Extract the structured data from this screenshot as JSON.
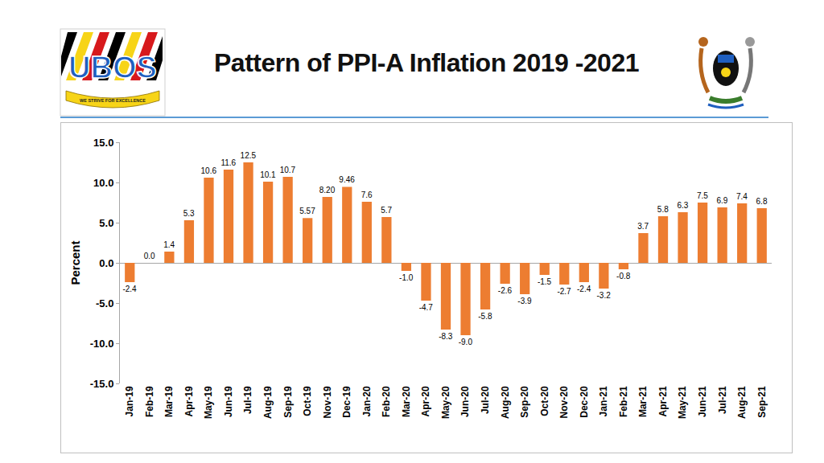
{
  "logo": {
    "text": "UBOS",
    "motto": "WE STRIVE FOR EXCELLENCE"
  },
  "chart_data": {
    "type": "bar",
    "title": "Pattern of PPI-A Inflation 2019 -2021",
    "y_label": "Percent",
    "categories": [
      "Jan-19",
      "Feb-19",
      "Mar-19",
      "Apr-19",
      "May-19",
      "Jun-19",
      "Jul-19",
      "Aug-19",
      "Sep-19",
      "Oct-19",
      "Nov-19",
      "Dec-19",
      "Jan-20",
      "Feb-20",
      "Mar-20",
      "Apr-20",
      "May-20",
      "Jun-20",
      "Jul-20",
      "Aug-20",
      "Sep-20",
      "Oct-20",
      "Nov-20",
      "Dec-20",
      "Jan-21",
      "Feb-21",
      "Mar-21",
      "Apr-21",
      "May-21",
      "Jun-21",
      "Jul-21",
      "Aug-21",
      "Sep-21"
    ],
    "values": [
      -2.4,
      0.0,
      1.4,
      5.3,
      10.6,
      11.6,
      12.5,
      10.1,
      10.7,
      5.57,
      8.2,
      9.46,
      7.6,
      5.7,
      -1.0,
      -4.7,
      -8.3,
      -9.0,
      -5.8,
      -2.6,
      -3.9,
      -1.5,
      -2.7,
      -2.4,
      -3.2,
      -0.8,
      3.7,
      5.8,
      6.3,
      7.5,
      6.9,
      7.4,
      6.8
    ],
    "value_labels": [
      "-2.4",
      "0.0",
      "1.4",
      "5.3",
      "10.6",
      "11.6",
      "12.5",
      "10.1",
      "10.7",
      "5.57",
      "8.20",
      "9.46",
      "7.6",
      "5.7",
      "-1.0",
      "-4.7",
      "-8.3",
      "-9.0",
      "-5.8",
      "-2.6",
      "-3.9",
      "-1.5",
      "-2.7",
      "-2.4",
      "-3.2",
      "-0.8",
      "3.7",
      "5.8",
      "6.3",
      "7.5",
      "6.9",
      "7.4",
      "6.8"
    ],
    "data_labels": true,
    "color": "#ed7d31",
    "ylim": [
      -15,
      15
    ],
    "yticks": [
      {
        "value": -15,
        "label": "-15.0"
      },
      {
        "value": -10,
        "label": "-10.0"
      },
      {
        "value": -5,
        "label": "-5.0"
      },
      {
        "value": 0,
        "label": "0.0"
      },
      {
        "value": 5,
        "label": "5.0"
      },
      {
        "value": 10,
        "label": "10.0"
      },
      {
        "value": 15,
        "label": "15.0"
      }
    ],
    "grid": false
  }
}
